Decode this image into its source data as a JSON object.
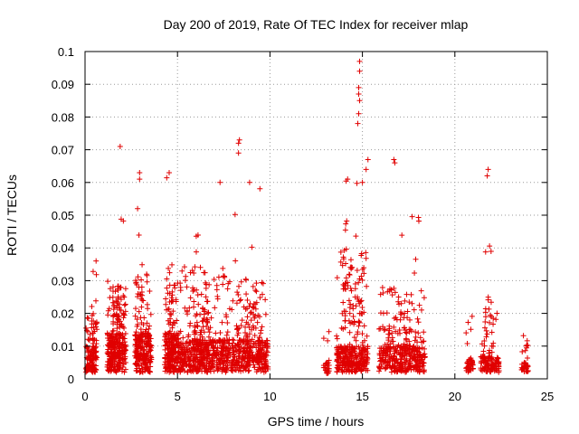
{
  "chart_data": {
    "type": "scatter",
    "title": "Day 200 of 2019, Rate Of TEC Index for receiver mlap",
    "xlabel": "GPS time / hours",
    "ylabel": "ROTI / TECUs",
    "xlim": [
      0,
      25
    ],
    "ylim": [
      0,
      0.1
    ],
    "xticks": [
      "0",
      "5",
      "10",
      "15",
      "20",
      "25"
    ],
    "yticks": [
      "0",
      "0.01",
      "0.02",
      "0.03",
      "0.04",
      "0.05",
      "0.06",
      "0.07",
      "0.08",
      "0.09",
      "0.1"
    ],
    "grid": true,
    "marker": "+",
    "color": "#e00000",
    "clusters": [
      {
        "x": [
          0.05,
          0.65
        ],
        "base": 0.008,
        "peak": 0.02,
        "n": 110
      },
      {
        "x": [
          0.35,
          0.65
        ],
        "base": 0.02,
        "peak": 0.037,
        "n": 25
      },
      {
        "x": [
          1.2,
          2.2
        ],
        "base": 0.012,
        "peak": 0.03,
        "n": 260
      },
      {
        "x": [
          1.5,
          2.2
        ],
        "base": 0.025,
        "peak": 0.055,
        "n": 35
      },
      {
        "x": [
          2.7,
          3.6
        ],
        "base": 0.012,
        "peak": 0.032,
        "n": 220
      },
      {
        "x": [
          2.7,
          3.1
        ],
        "base": 0.03,
        "peak": 0.064,
        "n": 30
      },
      {
        "x": [
          4.3,
          5.1
        ],
        "base": 0.012,
        "peak": 0.03,
        "n": 200
      },
      {
        "x": [
          4.4,
          4.8
        ],
        "base": 0.03,
        "peak": 0.063,
        "n": 25
      },
      {
        "x": [
          5.1,
          7.6
        ],
        "base": 0.01,
        "peak": 0.035,
        "n": 420
      },
      {
        "x": [
          5.8,
          6.8
        ],
        "base": 0.02,
        "peak": 0.046,
        "n": 70
      },
      {
        "x": [
          7.6,
          9.9
        ],
        "base": 0.01,
        "peak": 0.03,
        "n": 360
      },
      {
        "x": [
          8.1,
          9.6
        ],
        "base": 0.025,
        "peak": 0.06,
        "n": 40
      },
      {
        "x": [
          12.9,
          13.2
        ],
        "base": 0.003,
        "peak": 0.015,
        "n": 25
      },
      {
        "x": [
          13.6,
          15.3
        ],
        "base": 0.008,
        "peak": 0.04,
        "n": 300
      },
      {
        "x": [
          13.9,
          15.1
        ],
        "base": 0.035,
        "peak": 0.062,
        "n": 60
      },
      {
        "x": [
          15.9,
          18.4
        ],
        "base": 0.008,
        "peak": 0.03,
        "n": 330
      },
      {
        "x": [
          16.4,
          18.1
        ],
        "base": 0.025,
        "peak": 0.055,
        "n": 50
      },
      {
        "x": [
          20.6,
          21.0
        ],
        "base": 0.005,
        "peak": 0.02,
        "n": 45
      },
      {
        "x": [
          21.4,
          22.4
        ],
        "base": 0.005,
        "peak": 0.025,
        "n": 110
      },
      {
        "x": [
          21.6,
          22.1
        ],
        "base": 0.02,
        "peak": 0.048,
        "n": 20
      },
      {
        "x": [
          23.6,
          24.0
        ],
        "base": 0.003,
        "peak": 0.018,
        "n": 40
      }
    ],
    "highlights": [
      {
        "x": 1.9,
        "y": 0.071
      },
      {
        "x": 8.3,
        "y": 0.072
      },
      {
        "x": 8.35,
        "y": 0.073
      },
      {
        "x": 8.3,
        "y": 0.069
      },
      {
        "x": 8.9,
        "y": 0.06
      },
      {
        "x": 7.3,
        "y": 0.06
      },
      {
        "x": 14.85,
        "y": 0.097
      },
      {
        "x": 14.85,
        "y": 0.094
      },
      {
        "x": 14.8,
        "y": 0.089
      },
      {
        "x": 14.8,
        "y": 0.087
      },
      {
        "x": 14.85,
        "y": 0.085
      },
      {
        "x": 14.8,
        "y": 0.081
      },
      {
        "x": 14.75,
        "y": 0.078
      },
      {
        "x": 15.3,
        "y": 0.067
      },
      {
        "x": 15.2,
        "y": 0.064
      },
      {
        "x": 16.7,
        "y": 0.067
      },
      {
        "x": 16.75,
        "y": 0.066
      },
      {
        "x": 21.8,
        "y": 0.064
      },
      {
        "x": 21.75,
        "y": 0.062
      },
      {
        "x": 2.95,
        "y": 0.063
      },
      {
        "x": 2.95,
        "y": 0.061
      },
      {
        "x": 4.55,
        "y": 0.063
      },
      {
        "x": 14.2,
        "y": 0.061
      },
      {
        "x": 15.0,
        "y": 0.06
      }
    ]
  }
}
